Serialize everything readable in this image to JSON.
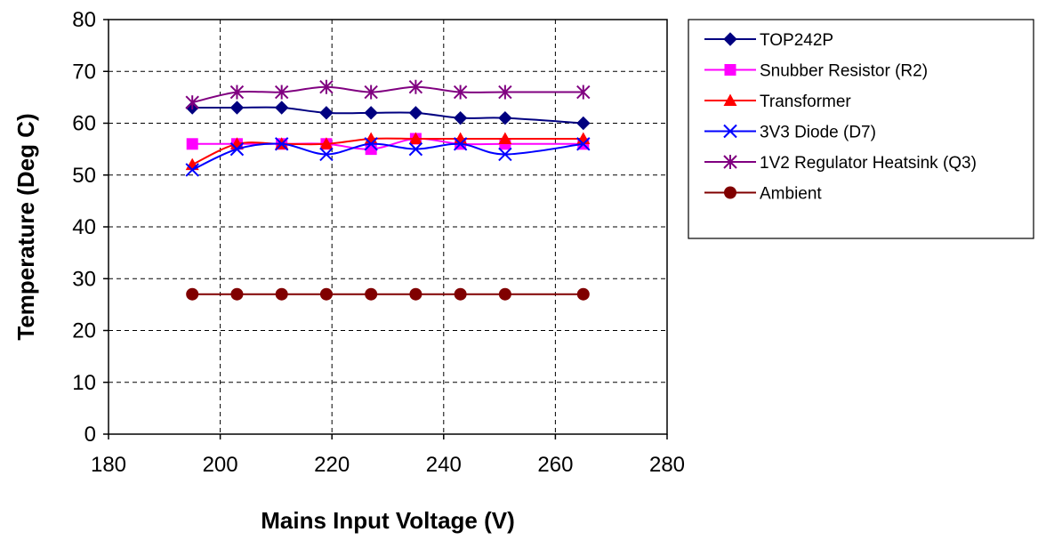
{
  "chart_data": {
    "type": "line",
    "xlabel": "Mains Input Voltage (V)",
    "ylabel": "Temperature (Deg C)",
    "xlim": [
      180,
      280
    ],
    "ylim": [
      0,
      80
    ],
    "x_ticks": [
      180,
      200,
      220,
      240,
      260,
      280
    ],
    "y_ticks": [
      0,
      10,
      20,
      30,
      40,
      50,
      60,
      70,
      80
    ],
    "grid": true,
    "legend_position": "right",
    "x": [
      195,
      203,
      211,
      219,
      227,
      235,
      243,
      251,
      265
    ],
    "series": [
      {
        "name": "TOP242P",
        "color": "#000080",
        "marker": "diamond",
        "values": [
          63,
          63,
          63,
          62,
          62,
          62,
          61,
          61,
          60
        ]
      },
      {
        "name": "Snubber Resistor (R2)",
        "color": "#FF00FF",
        "marker": "square",
        "values": [
          56,
          56,
          56,
          56,
          55,
          57,
          56,
          56,
          56
        ]
      },
      {
        "name": "Transformer",
        "color": "#FF0000",
        "marker": "triangle",
        "values": [
          52,
          56,
          56,
          56,
          57,
          57,
          57,
          57,
          57
        ]
      },
      {
        "name": "3V3 Diode (D7)",
        "color": "#0000FF",
        "marker": "x",
        "values": [
          51,
          55,
          56,
          54,
          56,
          55,
          56,
          54,
          56
        ]
      },
      {
        "name": "1V2 Regulator Heatsink (Q3)",
        "color": "#800080",
        "marker": "star",
        "values": [
          64,
          66,
          66,
          67,
          66,
          67,
          66,
          66,
          66
        ]
      },
      {
        "name": "Ambient",
        "color": "#800000",
        "marker": "circle",
        "values": [
          27,
          27,
          27,
          27,
          27,
          27,
          27,
          27,
          27
        ]
      }
    ]
  }
}
